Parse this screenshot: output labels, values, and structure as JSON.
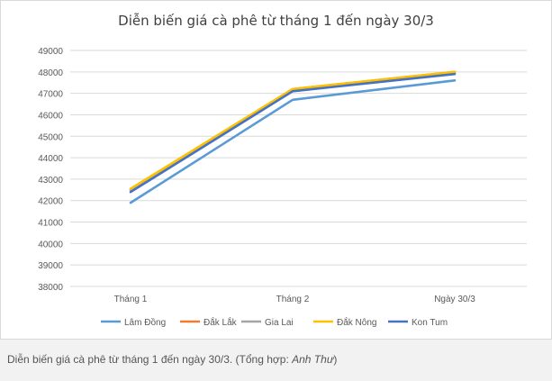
{
  "chart_data": {
    "type": "line",
    "title": "Diễn biến giá cà phê từ tháng 1 đến ngày 30/3",
    "xlabel": "",
    "ylabel": "",
    "categories": [
      "Tháng 1",
      "Tháng 2",
      "Ngày 30/3"
    ],
    "ylim": [
      38000,
      49000
    ],
    "yticks": [
      38000,
      39000,
      40000,
      41000,
      42000,
      43000,
      44000,
      45000,
      46000,
      47000,
      48000,
      49000
    ],
    "grid": true,
    "legend_position": "bottom",
    "series": [
      {
        "name": "Lâm Đồng",
        "color": "#5b9bd5",
        "values": [
          41900,
          46700,
          47600
        ]
      },
      {
        "name": "Đắk Lắk",
        "color": "#ed7d31",
        "values": [
          42500,
          47200,
          48000
        ]
      },
      {
        "name": "Gia Lai",
        "color": "#a5a5a5",
        "values": [
          42500,
          47150,
          47950
        ]
      },
      {
        "name": "Đắk Nông",
        "color": "#ffc000",
        "values": [
          42550,
          47200,
          48000
        ]
      },
      {
        "name": "Kon Tum",
        "color": "#4472c4",
        "values": [
          42400,
          47100,
          47900
        ]
      }
    ]
  },
  "caption": {
    "text": "Diễn biến giá cà phê từ tháng 1 đến ngày 30/3. (Tổng hợp: ",
    "author": "Anh Thư",
    "suffix": ")"
  }
}
